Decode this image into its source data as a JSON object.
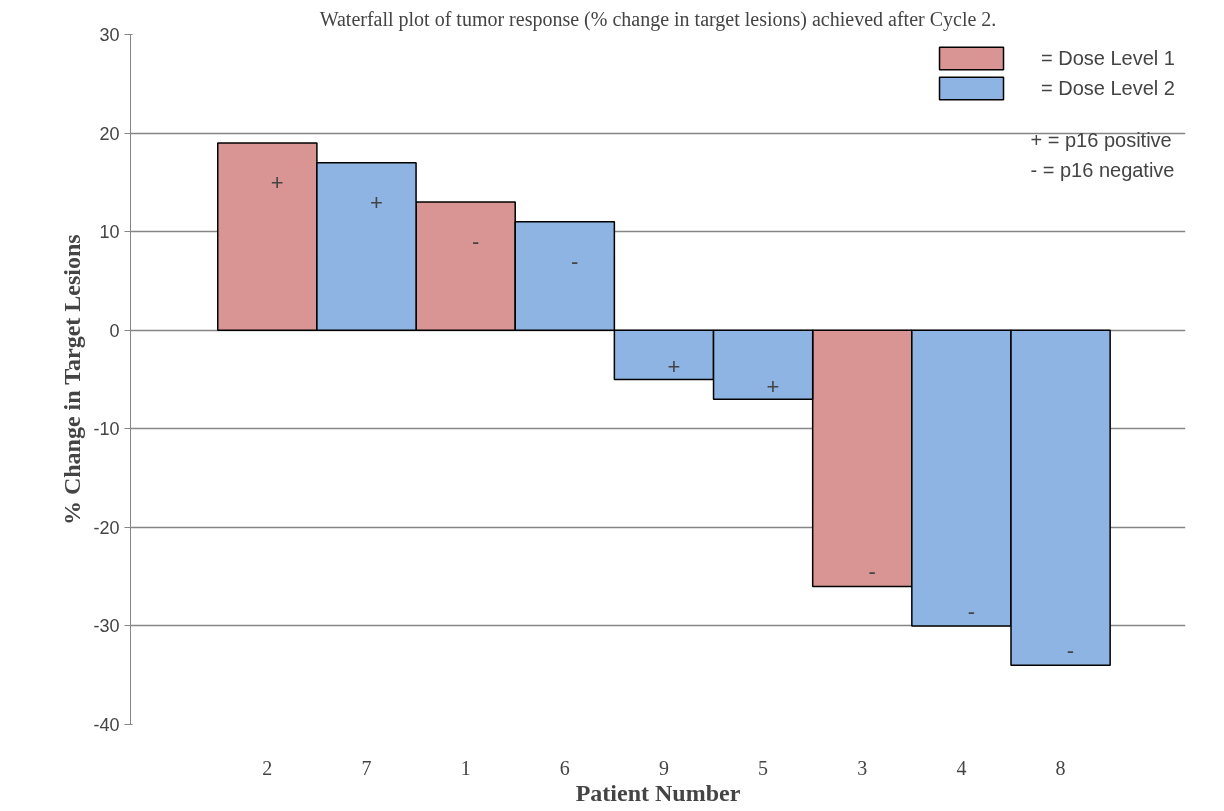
{
  "chart_data": {
    "type": "bar",
    "title": "Waterfall plot of tumor response (% change in target lesions) achieved after Cycle 2.",
    "xlabel": "Patient Number",
    "ylabel": "% Change in Target Lesions",
    "categories": [
      "2",
      "7",
      "1",
      "6",
      "9",
      "5",
      "3",
      "4",
      "8"
    ],
    "series": [
      {
        "name": "= Dose Level 1",
        "color": "#d99594",
        "values": [
          19,
          null,
          13,
          null,
          null,
          null,
          -26,
          null,
          null
        ],
        "value_labels": [
          "+",
          null,
          "-",
          null,
          null,
          null,
          "-",
          null,
          null
        ]
      },
      {
        "name": "= Dose Level 2",
        "color": "#8eb4e3",
        "values": [
          null,
          17,
          null,
          11,
          -5,
          -7,
          null,
          -30,
          -34
        ],
        "value_labels": [
          null,
          "+",
          null,
          "-",
          "+",
          "+",
          null,
          "-",
          "-"
        ]
      }
    ],
    "ylim": [
      -40,
      30
    ],
    "yticks": [
      -40,
      -30,
      -20,
      -10,
      0,
      10,
      20,
      30
    ],
    "grid": "y",
    "legend": "top right",
    "annotations": [
      "+      = p16 positive",
      "-       = p16 negative"
    ]
  }
}
